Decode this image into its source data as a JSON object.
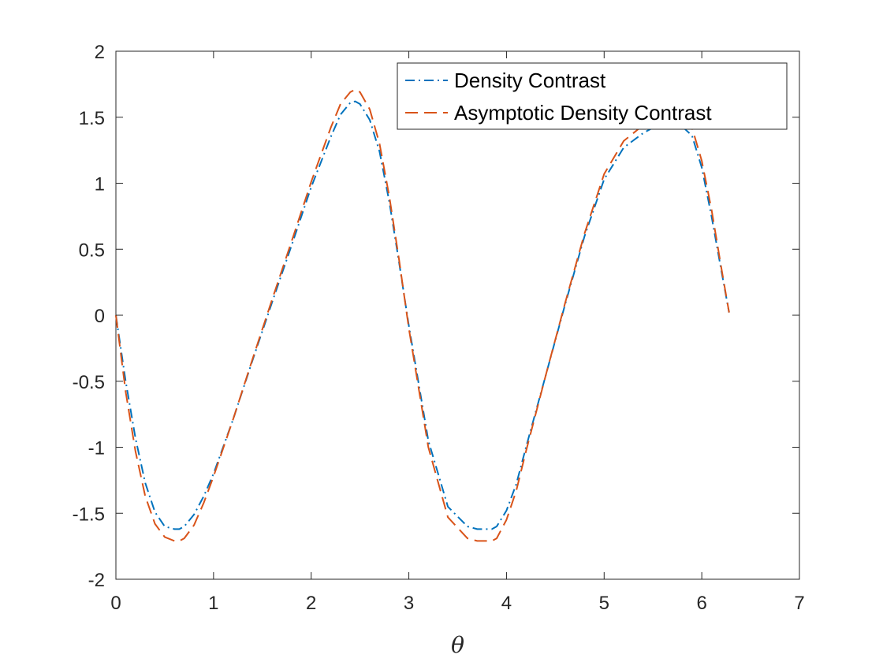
{
  "chart_data": {
    "type": "line",
    "title": "",
    "xlabel": "θ",
    "ylabel": "",
    "xlim": [
      0,
      7
    ],
    "ylim": [
      -2,
      2
    ],
    "xticks": [
      0,
      1,
      2,
      3,
      4,
      5,
      6,
      7
    ],
    "xtick_labels": [
      "0",
      "1",
      "2",
      "3",
      "4",
      "5",
      "6",
      "7"
    ],
    "yticks": [
      -2,
      -1.5,
      -1,
      -0.5,
      0,
      0.5,
      1,
      1.5,
      2
    ],
    "ytick_labels": [
      "-2",
      "-1.5",
      "-1",
      "-0.5",
      "0",
      "0.5",
      "1",
      "1.5",
      "2"
    ],
    "grid": false,
    "legend_position": "top-right",
    "series": [
      {
        "name": "Density Contrast",
        "color": "#0072BD",
        "line_style": "dash-dot",
        "x": [
          0,
          0.1,
          0.2,
          0.3,
          0.4,
          0.5,
          0.6,
          0.65,
          0.7,
          0.8,
          0.9,
          1.0,
          1.2,
          1.4,
          1.6,
          1.8,
          2.0,
          2.2,
          2.3,
          2.4,
          2.45,
          2.5,
          2.6,
          2.7,
          2.8,
          2.9,
          3.0,
          3.2,
          3.4,
          3.6,
          3.7,
          3.8,
          3.85,
          3.9,
          4.0,
          4.1,
          4.2,
          4.4,
          4.6,
          4.8,
          5.0,
          5.2,
          5.4,
          5.5,
          5.6,
          5.7,
          5.8,
          5.9,
          6.0,
          6.1,
          6.2,
          6.28
        ],
        "y": [
          0,
          -0.5,
          -0.93,
          -1.27,
          -1.49,
          -1.6,
          -1.62,
          -1.62,
          -1.6,
          -1.51,
          -1.37,
          -1.2,
          -0.79,
          -0.34,
          0.1,
          0.53,
          0.97,
          1.35,
          1.52,
          1.61,
          1.62,
          1.6,
          1.48,
          1.24,
          0.86,
          0.4,
          -0.08,
          -0.95,
          -1.45,
          -1.6,
          -1.62,
          -1.62,
          -1.62,
          -1.6,
          -1.48,
          -1.28,
          -1.0,
          -0.46,
          0.08,
          0.6,
          1.03,
          1.27,
          1.38,
          1.42,
          1.44,
          1.44,
          1.43,
          1.36,
          1.12,
          0.75,
          0.34,
          0.02
        ]
      },
      {
        "name": "Asymptotic Density Contrast",
        "color": "#D95319",
        "line_style": "dashed",
        "x": [
          0,
          0.1,
          0.2,
          0.3,
          0.4,
          0.5,
          0.6,
          0.65,
          0.7,
          0.8,
          0.9,
          1.0,
          1.2,
          1.4,
          1.6,
          1.8,
          2.0,
          2.2,
          2.3,
          2.4,
          2.45,
          2.5,
          2.6,
          2.7,
          2.8,
          2.9,
          3.0,
          3.2,
          3.4,
          3.6,
          3.7,
          3.8,
          3.85,
          3.9,
          4.0,
          4.1,
          4.2,
          4.4,
          4.6,
          4.8,
          5.0,
          5.2,
          5.4,
          5.5,
          5.6,
          5.7,
          5.8,
          5.9,
          6.0,
          6.1,
          6.2,
          6.28
        ],
        "y": [
          0,
          -0.58,
          -1.03,
          -1.37,
          -1.58,
          -1.68,
          -1.71,
          -1.71,
          -1.69,
          -1.59,
          -1.42,
          -1.22,
          -0.79,
          -0.33,
          0.12,
          0.56,
          1.01,
          1.42,
          1.6,
          1.69,
          1.71,
          1.69,
          1.56,
          1.3,
          0.9,
          0.42,
          -0.1,
          -1.0,
          -1.53,
          -1.69,
          -1.71,
          -1.71,
          -1.71,
          -1.69,
          -1.55,
          -1.33,
          -1.03,
          -0.46,
          0.09,
          0.62,
          1.07,
          1.32,
          1.44,
          1.48,
          1.5,
          1.5,
          1.49,
          1.42,
          1.17,
          0.8,
          0.36,
          0.02
        ]
      }
    ]
  }
}
